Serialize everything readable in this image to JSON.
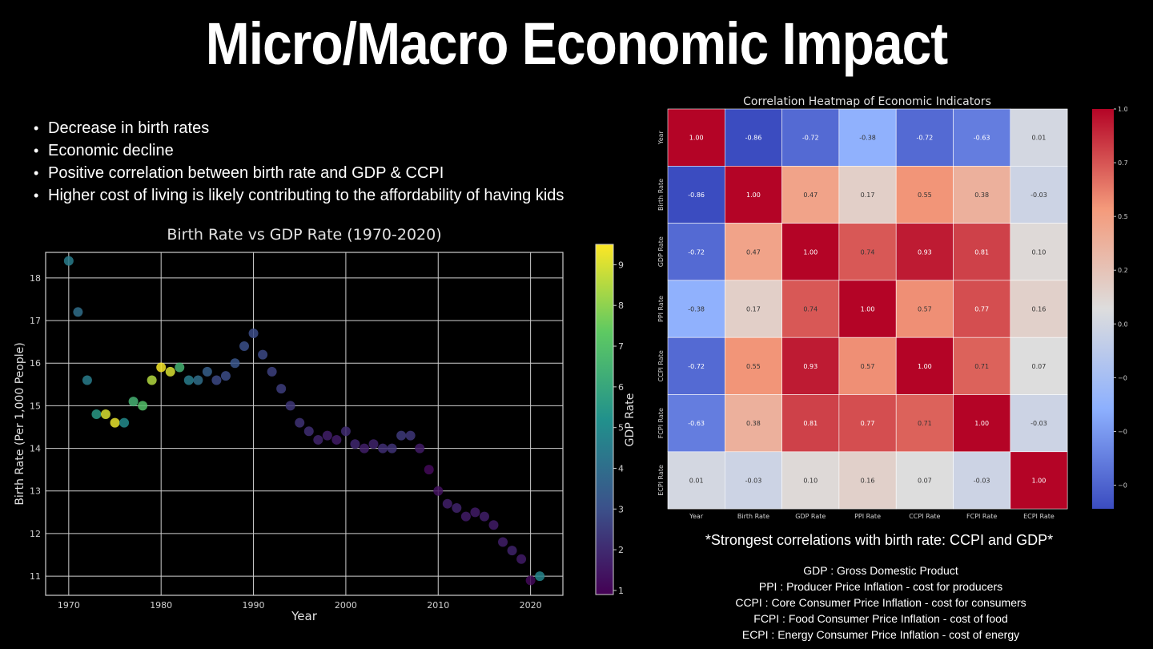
{
  "slide": {
    "title": "Micro/Macro Economic Impact",
    "bullets": [
      "Decrease in birth rates",
      "Economic decline",
      "Positive correlation between birth rate and GDP & CCPI",
      "Higher cost of living is likely contributing to the affordability of having kids"
    ],
    "strongest_note": "*Strongest correlations with birth rate: CCPI and GDP*",
    "definitions": [
      "GDP : Gross Domestic Product",
      "PPI : Producer Price Inflation - cost for producers",
      "CCPI : Core Consumer Price Inflation - cost for consumers",
      "FCPI : Food Consumer Price Inflation - cost of food",
      "ECPI : Energy Consumer Price Inflation - cost of energy"
    ]
  },
  "chart_data": [
    {
      "type": "scatter",
      "title": "Birth Rate vs GDP Rate (1970-2020)",
      "xlabel": "Year",
      "ylabel": "Birth Rate (Per 1,000 People)",
      "colorbar_label": "GDP Rate",
      "colormap": "viridis",
      "grid": true,
      "xlim": [
        1967.5,
        2023.5
      ],
      "ylim": [
        10.55,
        18.6
      ],
      "color_range": [
        0.9,
        9.5
      ],
      "xticks": [
        1970,
        1980,
        1990,
        2000,
        2010,
        2020
      ],
      "yticks": [
        11,
        12,
        13,
        14,
        15,
        16,
        17,
        18
      ],
      "colorbar_ticks": [
        1,
        2,
        3,
        4,
        5,
        6,
        7,
        8,
        9
      ],
      "points": [
        {
          "x": 1970,
          "y": 18.4,
          "c": 4.5
        },
        {
          "x": 1971,
          "y": 17.2,
          "c": 4.0
        },
        {
          "x": 1972,
          "y": 15.6,
          "c": 4.5
        },
        {
          "x": 1973,
          "y": 14.8,
          "c": 5.5
        },
        {
          "x": 1974,
          "y": 14.8,
          "c": 9.0
        },
        {
          "x": 1975,
          "y": 14.6,
          "c": 9.2
        },
        {
          "x": 1976,
          "y": 14.6,
          "c": 5.0
        },
        {
          "x": 1977,
          "y": 15.1,
          "c": 6.5
        },
        {
          "x": 1978,
          "y": 15.0,
          "c": 7.0
        },
        {
          "x": 1979,
          "y": 15.6,
          "c": 8.5
        },
        {
          "x": 1980,
          "y": 15.9,
          "c": 9.4
        },
        {
          "x": 1981,
          "y": 15.8,
          "c": 9.0
        },
        {
          "x": 1982,
          "y": 15.9,
          "c": 6.5
        },
        {
          "x": 1983,
          "y": 15.6,
          "c": 4.5
        },
        {
          "x": 1984,
          "y": 15.6,
          "c": 4.0
        },
        {
          "x": 1985,
          "y": 15.8,
          "c": 3.5
        },
        {
          "x": 1986,
          "y": 15.6,
          "c": 2.8
        },
        {
          "x": 1987,
          "y": 15.7,
          "c": 2.9
        },
        {
          "x": 1988,
          "y": 16.0,
          "c": 3.2
        },
        {
          "x": 1989,
          "y": 16.4,
          "c": 3.0
        },
        {
          "x": 1990,
          "y": 16.7,
          "c": 2.9
        },
        {
          "x": 1991,
          "y": 16.2,
          "c": 2.8
        },
        {
          "x": 1992,
          "y": 15.8,
          "c": 2.6
        },
        {
          "x": 1993,
          "y": 15.4,
          "c": 2.5
        },
        {
          "x": 1994,
          "y": 15.0,
          "c": 2.3
        },
        {
          "x": 1995,
          "y": 14.6,
          "c": 2.2
        },
        {
          "x": 1996,
          "y": 14.4,
          "c": 2.1
        },
        {
          "x": 1997,
          "y": 14.2,
          "c": 1.8
        },
        {
          "x": 1998,
          "y": 14.3,
          "c": 1.7
        },
        {
          "x": 1999,
          "y": 14.2,
          "c": 1.6
        },
        {
          "x": 2000,
          "y": 14.4,
          "c": 2.0
        },
        {
          "x": 2001,
          "y": 14.1,
          "c": 1.9
        },
        {
          "x": 2002,
          "y": 14.0,
          "c": 1.7
        },
        {
          "x": 2003,
          "y": 14.1,
          "c": 1.8
        },
        {
          "x": 2004,
          "y": 14.0,
          "c": 2.1
        },
        {
          "x": 2005,
          "y": 14.0,
          "c": 2.2
        },
        {
          "x": 2006,
          "y": 14.3,
          "c": 2.4
        },
        {
          "x": 2007,
          "y": 14.3,
          "c": 2.3
        },
        {
          "x": 2008,
          "y": 14.0,
          "c": 1.6
        },
        {
          "x": 2009,
          "y": 13.5,
          "c": 1.1
        },
        {
          "x": 2010,
          "y": 13.0,
          "c": 1.3
        },
        {
          "x": 2011,
          "y": 12.7,
          "c": 1.7
        },
        {
          "x": 2012,
          "y": 12.6,
          "c": 1.8
        },
        {
          "x": 2013,
          "y": 12.4,
          "c": 1.6
        },
        {
          "x": 2014,
          "y": 12.5,
          "c": 1.6
        },
        {
          "x": 2015,
          "y": 12.4,
          "c": 1.7
        },
        {
          "x": 2016,
          "y": 12.2,
          "c": 1.6
        },
        {
          "x": 2017,
          "y": 11.8,
          "c": 1.7
        },
        {
          "x": 2018,
          "y": 11.6,
          "c": 1.8
        },
        {
          "x": 2019,
          "y": 11.4,
          "c": 1.6
        },
        {
          "x": 2020,
          "y": 10.9,
          "c": 1.1
        },
        {
          "x": 2021,
          "y": 11.0,
          "c": 4.8
        }
      ]
    },
    {
      "type": "heatmap",
      "title": "Correlation Heatmap of Economic Indicators",
      "colormap": "coolwarm",
      "value_range": [
        -0.86,
        1.0
      ],
      "labels": [
        "Year",
        "Birth Rate",
        "GDP Rate",
        "PPI Rate",
        "CCPI Rate",
        "FCPI Rate",
        "ECPI Rate"
      ],
      "colorbar_ticks": [
        1.0,
        0.75,
        0.5,
        0.25,
        0.0,
        -0.25,
        -0.5,
        -0.75
      ],
      "matrix": [
        [
          1.0,
          -0.86,
          -0.72,
          -0.38,
          -0.72,
          -0.63,
          0.01
        ],
        [
          -0.86,
          1.0,
          0.47,
          0.17,
          0.55,
          0.38,
          -0.03
        ],
        [
          -0.72,
          0.47,
          1.0,
          0.74,
          0.93,
          0.81,
          0.1
        ],
        [
          -0.38,
          0.17,
          0.74,
          1.0,
          0.57,
          0.77,
          0.16
        ],
        [
          -0.72,
          0.55,
          0.93,
          0.57,
          1.0,
          0.71,
          0.07
        ],
        [
          -0.63,
          0.38,
          0.81,
          0.77,
          0.71,
          1.0,
          -0.03
        ],
        [
          0.01,
          -0.03,
          0.1,
          0.16,
          0.07,
          -0.03,
          1.0
        ]
      ]
    }
  ]
}
